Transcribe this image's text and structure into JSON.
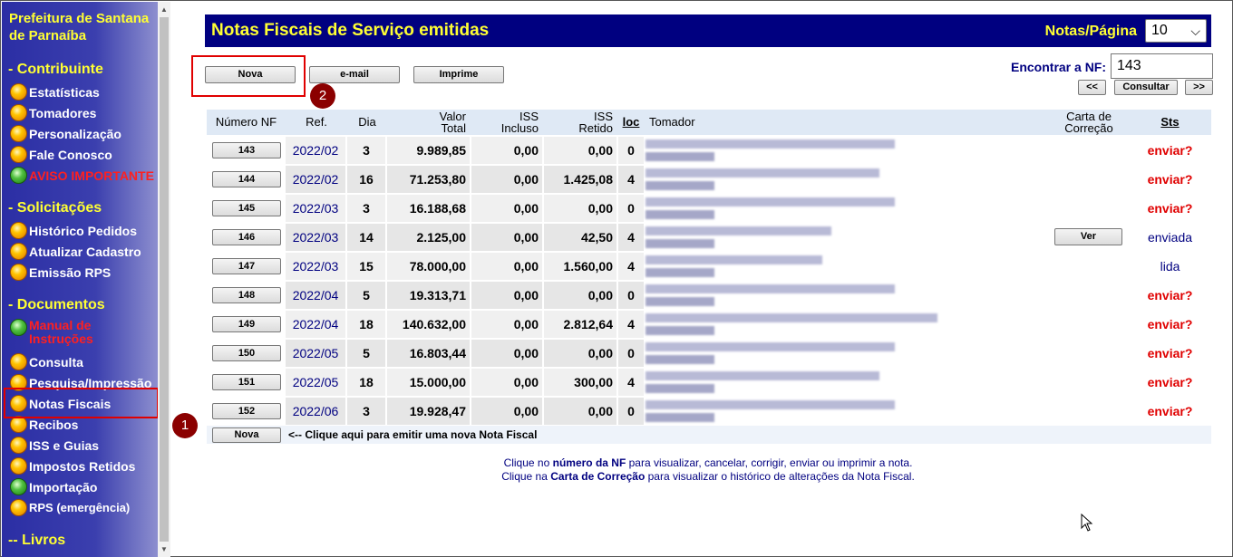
{
  "sidebar": {
    "title": "Prefeitura de Santana de Parnaíba",
    "sections": {
      "contribuinte": "- Contribuinte",
      "solicitacoes": "- Solicitações",
      "documentos": "- Documentos",
      "livros": "-- Livros"
    },
    "items": {
      "estatisticas": "Estatísticas",
      "tomadores": "Tomadores",
      "personalizacao": "Personalização",
      "fale_conosco": "Fale Conosco",
      "aviso": "AVISO IMPORTANTE",
      "historico": "Histórico Pedidos",
      "atualizar": "Atualizar Cadastro",
      "emissao_rps": "Emissão RPS",
      "manual": "Manual de Instruções",
      "consulta": "Consulta",
      "pesquisa": "Pesquisa/Impressão",
      "notas": "Notas Fiscais",
      "recibos": "Recibos",
      "iss_guias": "ISS e Guias",
      "impostos": "Impostos Retidos",
      "importacao": "Importação",
      "rps": "RPS (emergência)"
    }
  },
  "header": {
    "title": "Notas Fiscais de Serviço emitidas",
    "per_page_label": "Notas/Página",
    "per_page_value": "10"
  },
  "toolbar": {
    "nova": "Nova",
    "email": "e-mail",
    "imprime": "Imprime"
  },
  "search": {
    "label": "Encontrar a NF:",
    "value": "143",
    "prev": "<<",
    "consultar": "Consultar",
    "next": ">>"
  },
  "badges": {
    "one": "1",
    "two": "2"
  },
  "table": {
    "headers": {
      "numero": "Número NF",
      "ref": "Ref.",
      "dia": "Dia",
      "valor1": "Valor",
      "valor2": "Total",
      "iss1": "ISS",
      "iss2": "Incluso",
      "ret1": "ISS",
      "ret2": "Retido",
      "loc": "loc",
      "tomador": "Tomador",
      "carta1": "Carta de",
      "carta2": "Correção",
      "sts": "Sts"
    },
    "rows": [
      {
        "nf": "143",
        "ref": "2022/02",
        "dia": "3",
        "valor": "9.989,85",
        "iss": "0,00",
        "retido": "0,00",
        "loc": "0",
        "sts": "enviar?"
      },
      {
        "nf": "144",
        "ref": "2022/02",
        "dia": "16",
        "valor": "71.253,80",
        "iss": "0,00",
        "retido": "1.425,08",
        "loc": "4",
        "sts": "enviar?"
      },
      {
        "nf": "145",
        "ref": "2022/03",
        "dia": "3",
        "valor": "16.188,68",
        "iss": "0,00",
        "retido": "0,00",
        "loc": "0",
        "sts": "enviar?"
      },
      {
        "nf": "146",
        "ref": "2022/03",
        "dia": "14",
        "valor": "2.125,00",
        "iss": "0,00",
        "retido": "42,50",
        "loc": "4",
        "carta": "Ver",
        "sts": "enviada"
      },
      {
        "nf": "147",
        "ref": "2022/03",
        "dia": "15",
        "valor": "78.000,00",
        "iss": "0,00",
        "retido": "1.560,00",
        "loc": "4",
        "sts": "lida"
      },
      {
        "nf": "148",
        "ref": "2022/04",
        "dia": "5",
        "valor": "19.313,71",
        "iss": "0,00",
        "retido": "0,00",
        "loc": "0",
        "sts": "enviar?"
      },
      {
        "nf": "149",
        "ref": "2022/04",
        "dia": "18",
        "valor": "140.632,00",
        "iss": "0,00",
        "retido": "2.812,64",
        "loc": "4",
        "sts": "enviar?"
      },
      {
        "nf": "150",
        "ref": "2022/05",
        "dia": "5",
        "valor": "16.803,44",
        "iss": "0,00",
        "retido": "0,00",
        "loc": "0",
        "sts": "enviar?"
      },
      {
        "nf": "151",
        "ref": "2022/05",
        "dia": "18",
        "valor": "15.000,00",
        "iss": "0,00",
        "retido": "300,00",
        "loc": "4",
        "sts": "enviar?"
      },
      {
        "nf": "152",
        "ref": "2022/06",
        "dia": "3",
        "valor": "19.928,47",
        "iss": "0,00",
        "retido": "0,00",
        "loc": "0",
        "sts": "enviar?"
      }
    ],
    "footer_button": "Nova",
    "footer_text": "<-- Clique aqui para emitir uma nova Nota Fiscal"
  },
  "help": {
    "l1_pre": "Clique no ",
    "l1_bold": "número da NF",
    "l1_post": " para visualizar, cancelar, corrigir, enviar ou imprimir a nota.",
    "l2_pre": "Clique na ",
    "l2_bold": "Carta de Correção",
    "l2_post": " para visualizar o histórico de alterações da Nota Fiscal."
  },
  "colors": {
    "sidebar": "#2b2ea4",
    "header_bg": "#000080",
    "header_text": "#ffff33",
    "status_red": "#e00000",
    "highlight": "#e00000"
  }
}
